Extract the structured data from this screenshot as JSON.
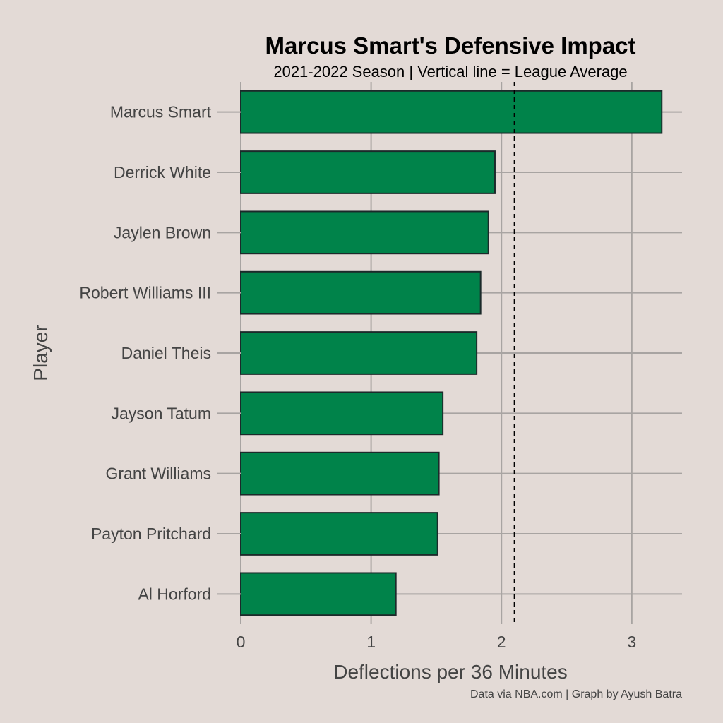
{
  "title": "Marcus Smart's Defensive Impact",
  "subtitle": "2021-2022 Season | Vertical line = League Average",
  "caption": "Data via NBA.com | Graph by Ayush Batra",
  "colors": {
    "background": "#e3dad6",
    "bar_fill": "#00834a",
    "bar_outline": "#1b2a2a"
  },
  "chart_data": {
    "type": "bar",
    "orientation": "horizontal",
    "title": "Marcus Smart's Defensive Impact",
    "subtitle": "2021-2022 Season | Vertical line = League Average",
    "xlabel": "Deflections per 36 Minutes",
    "ylabel": "Player",
    "categories": [
      "Marcus Smart",
      "Derrick White",
      "Jaylen Brown",
      "Robert Williams III",
      "Daniel Theis",
      "Jayson Tatum",
      "Grant Williams",
      "Payton Pritchard",
      "Al Horford"
    ],
    "values": [
      3.23,
      1.95,
      1.9,
      1.84,
      1.81,
      1.55,
      1.52,
      1.51,
      1.19
    ],
    "league_average": 2.1,
    "xlim": [
      0,
      3.4
    ],
    "xticks": [
      "0",
      "1",
      "2",
      "3"
    ],
    "grid": true,
    "legend": "none"
  }
}
